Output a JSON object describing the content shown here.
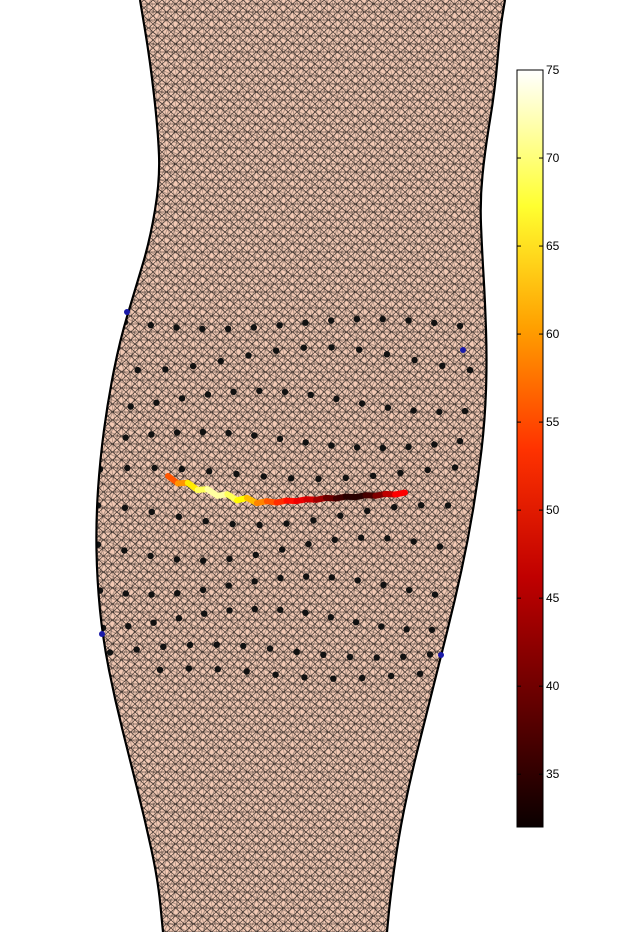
{
  "figure": {
    "surface_color": "#f2c9b4",
    "mesh_line_color": "#000000",
    "electrode_color": "#111111",
    "reference_marker_color": "#1a1aa8"
  },
  "colorbar": {
    "min": 32,
    "max": 75,
    "colormap": "hot",
    "ticks": [
      "35",
      "40",
      "45",
      "50",
      "55",
      "60",
      "65",
      "70",
      "75"
    ]
  },
  "trace": {
    "description_values": [
      52,
      55,
      60,
      66,
      70,
      72,
      70,
      66,
      62,
      58,
      55,
      52,
      50,
      48,
      46,
      44,
      40,
      37,
      35,
      34,
      35,
      38,
      42,
      46,
      50
    ]
  }
}
